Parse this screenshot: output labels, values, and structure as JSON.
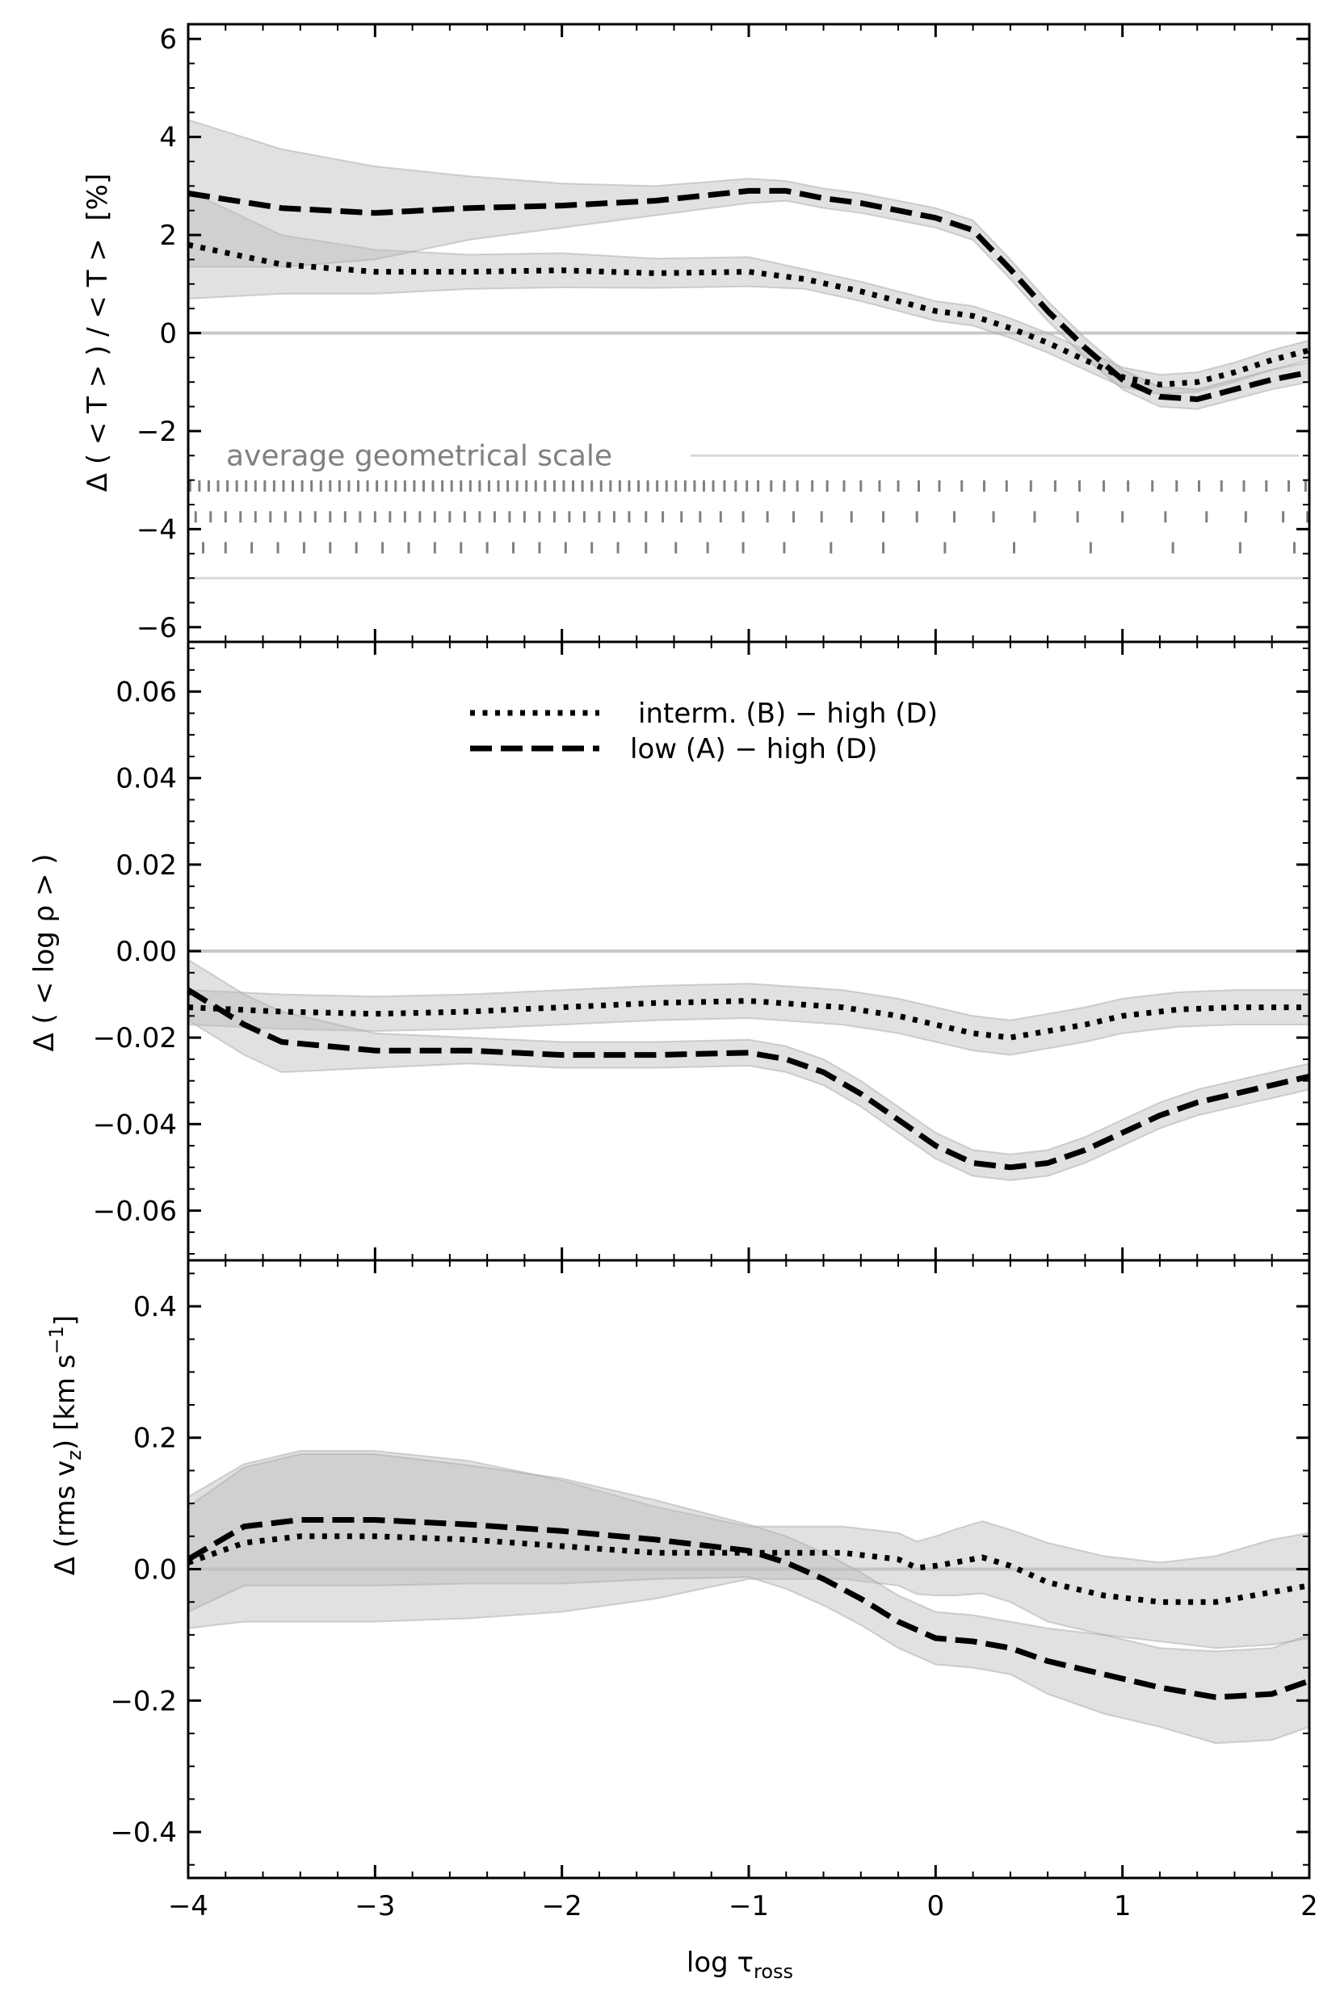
{
  "chart_data": {
    "type": "line",
    "xlabel": "log τ",
    "xlabel_sub": "ross",
    "xlim": [
      -4,
      2
    ],
    "xticks": [
      -4,
      -3,
      -2,
      -1,
      0,
      1,
      2
    ],
    "xtick_labels": [
      "−4",
      "−3",
      "−2",
      "−1",
      "0",
      "1",
      "2"
    ],
    "legend": {
      "placement": "top-center of middle panel",
      "entries": [
        {
          "label": "interm. (B) − high (D)",
          "style": "dotted"
        },
        {
          "label": "low (A) − high (D)",
          "style": "dashed"
        }
      ]
    },
    "colors": {
      "lines": "#000000",
      "band": "#bdbdbd",
      "zero_line": "#c8c8c8",
      "scale": "#808080"
    },
    "panels": [
      {
        "id": "temperature",
        "ylabel": "Δ ( < T > ) / < T >  [%]",
        "ylim": [
          -6.3,
          6.3
        ],
        "yticks": [
          -6,
          -4,
          -2,
          0,
          2,
          4,
          6
        ],
        "ytick_labels": [
          "−6",
          "−4",
          "−2",
          "0",
          "2",
          "4",
          "6"
        ],
        "series": [
          {
            "style": "dotted",
            "x": [
              -4,
              -3.5,
              -3,
              -2.5,
              -2,
              -1.5,
              -1,
              -0.7,
              -0.4,
              -0.2,
              0,
              0.2,
              0.4,
              0.6,
              0.8,
              1,
              1.2,
              1.4,
              1.6,
              1.8,
              2
            ],
            "y": [
              1.8,
              1.4,
              1.25,
              1.25,
              1.28,
              1.22,
              1.25,
              1.1,
              0.85,
              0.65,
              0.45,
              0.35,
              0.1,
              -0.2,
              -0.55,
              -0.9,
              -1.05,
              -1.0,
              -0.8,
              -0.55,
              -0.35
            ],
            "band": [
              1.1,
              0.6,
              0.45,
              0.35,
              0.35,
              0.3,
              0.3,
              0.2,
              0.2,
              0.2,
              0.2,
              0.2,
              0.2,
              0.2,
              0.2,
              0.2,
              0.2,
              0.2,
              0.2,
              0.2,
              0.2
            ]
          },
          {
            "style": "dashed",
            "x": [
              -4,
              -3.5,
              -3,
              -2.5,
              -2,
              -1.5,
              -1,
              -0.8,
              -0.6,
              -0.4,
              -0.2,
              0,
              0.2,
              0.4,
              0.6,
              0.8,
              1,
              1.2,
              1.4,
              1.6,
              1.8,
              2
            ],
            "y": [
              2.85,
              2.55,
              2.45,
              2.55,
              2.6,
              2.7,
              2.9,
              2.9,
              2.75,
              2.65,
              2.5,
              2.35,
              2.1,
              1.3,
              0.45,
              -0.3,
              -0.95,
              -1.3,
              -1.35,
              -1.15,
              -0.95,
              -0.8
            ],
            "band": [
              1.5,
              1.2,
              0.95,
              0.65,
              0.45,
              0.3,
              0.25,
              0.2,
              0.2,
              0.2,
              0.2,
              0.2,
              0.2,
              0.2,
              0.2,
              0.2,
              0.2,
              0.2,
              0.2,
              0.2,
              0.2,
              0.2
            ]
          }
        ],
        "scale_annotation": {
          "label": "average geometrical scale",
          "label_y": -2.5,
          "bottom_line_y": -5.0,
          "rows": [
            {
              "y": -3.12,
              "x_positions": [
                -3.99,
                -3.94,
                -3.89,
                -3.84,
                -3.79,
                -3.74,
                -3.69,
                -3.64,
                -3.59,
                -3.54,
                -3.49,
                -3.44,
                -3.39,
                -3.34,
                -3.29,
                -3.24,
                -3.19,
                -3.14,
                -3.09,
                -3.04,
                -2.99,
                -2.94,
                -2.89,
                -2.84,
                -2.79,
                -2.74,
                -2.69,
                -2.64,
                -2.59,
                -2.54,
                -2.49,
                -2.44,
                -2.39,
                -2.34,
                -2.29,
                -2.24,
                -2.19,
                -2.14,
                -2.09,
                -2.04,
                -1.99,
                -1.94,
                -1.89,
                -1.84,
                -1.79,
                -1.74,
                -1.69,
                -1.64,
                -1.59,
                -1.54,
                -1.49,
                -1.44,
                -1.39,
                -1.34,
                -1.29,
                -1.24,
                -1.19,
                -1.13,
                -1.07,
                -1.01,
                -0.95,
                -0.88,
                -0.81,
                -0.74,
                -0.66,
                -0.58,
                -0.49,
                -0.4,
                -0.3,
                -0.2,
                -0.09,
                0.02,
                0.14,
                0.26,
                0.38,
                0.51,
                0.64,
                0.77,
                0.9,
                1.03,
                1.16,
                1.29,
                1.41,
                1.53,
                1.65,
                1.77,
                1.89,
                1.98
              ]
            },
            {
              "y": -3.75,
              "x_positions": [
                -3.96,
                -3.88,
                -3.8,
                -3.72,
                -3.64,
                -3.56,
                -3.48,
                -3.4,
                -3.32,
                -3.24,
                -3.16,
                -3.08,
                -3.0,
                -2.92,
                -2.84,
                -2.76,
                -2.68,
                -2.6,
                -2.52,
                -2.44,
                -2.36,
                -2.28,
                -2.2,
                -2.12,
                -2.04,
                -1.96,
                -1.88,
                -1.8,
                -1.72,
                -1.64,
                -1.55,
                -1.46,
                -1.36,
                -1.26,
                -1.15,
                -1.03,
                -0.9,
                -0.76,
                -0.61,
                -0.45,
                -0.28,
                -0.1,
                0.1,
                0.31,
                0.53,
                0.76,
                1.0,
                1.23,
                1.45,
                1.66,
                1.86,
                1.99
              ]
            },
            {
              "y": -4.38,
              "x_positions": [
                -3.92,
                -3.8,
                -3.66,
                -3.52,
                -3.38,
                -3.24,
                -3.1,
                -2.96,
                -2.82,
                -2.68,
                -2.54,
                -2.4,
                -2.26,
                -2.12,
                -1.98,
                -1.84,
                -1.7,
                -1.55,
                -1.39,
                -1.22,
                -1.03,
                -0.81,
                -0.56,
                -0.28,
                0.05,
                0.42,
                0.83,
                1.27,
                1.63,
                1.92
              ]
            }
          ]
        }
      },
      {
        "id": "density",
        "ylabel": "Δ ( < log ρ > )",
        "ylim": [
          -0.0715,
          0.0715
        ],
        "yticks": [
          -0.06,
          -0.04,
          -0.02,
          0.0,
          0.02,
          0.04,
          0.06
        ],
        "ytick_labels": [
          "−0.06",
          "−0.04",
          "−0.02",
          "0.00",
          "0.02",
          "0.04",
          "0.06"
        ],
        "series": [
          {
            "style": "dotted",
            "x": [
              -4,
              -3.5,
              -3,
              -2.5,
              -2,
              -1.5,
              -1,
              -0.5,
              -0.2,
              0,
              0.2,
              0.4,
              0.6,
              0.8,
              1,
              1.3,
              1.6,
              2
            ],
            "y": [
              -0.013,
              -0.014,
              -0.0145,
              -0.014,
              -0.013,
              -0.012,
              -0.0115,
              -0.013,
              -0.015,
              -0.017,
              -0.019,
              -0.02,
              -0.0185,
              -0.017,
              -0.015,
              -0.0135,
              -0.013,
              -0.013
            ],
            "band": [
              0.004,
              0.004,
              0.004,
              0.004,
              0.004,
              0.004,
              0.004,
              0.004,
              0.004,
              0.004,
              0.004,
              0.004,
              0.004,
              0.004,
              0.004,
              0.004,
              0.004,
              0.004
            ]
          },
          {
            "style": "dashed",
            "x": [
              -4,
              -3.7,
              -3.5,
              -3,
              -2.5,
              -2,
              -1.5,
              -1,
              -0.8,
              -0.6,
              -0.4,
              -0.2,
              0,
              0.2,
              0.4,
              0.6,
              0.8,
              1,
              1.2,
              1.4,
              1.6,
              1.8,
              2
            ],
            "y": [
              -0.009,
              -0.017,
              -0.021,
              -0.023,
              -0.023,
              -0.024,
              -0.024,
              -0.0235,
              -0.025,
              -0.028,
              -0.033,
              -0.039,
              -0.045,
              -0.049,
              -0.05,
              -0.049,
              -0.046,
              -0.042,
              -0.038,
              -0.035,
              -0.033,
              -0.031,
              -0.029
            ],
            "band": [
              0.007,
              0.007,
              0.007,
              0.004,
              0.003,
              0.003,
              0.003,
              0.003,
              0.003,
              0.003,
              0.003,
              0.003,
              0.003,
              0.003,
              0.003,
              0.003,
              0.003,
              0.003,
              0.003,
              0.003,
              0.003,
              0.003,
              0.003
            ]
          }
        ]
      },
      {
        "id": "velocity",
        "ylabel": "Δ (rms v",
        "ylabel_sub": "z",
        "ylabel_rest": ") [km s",
        "ylabel_sup": "−1",
        "ylabel_end": "]",
        "ylim": [
          -0.47,
          0.47
        ],
        "yticks": [
          -0.4,
          -0.2,
          0.0,
          0.2,
          0.4
        ],
        "ytick_labels": [
          "−0.4",
          "−0.2",
          "0.0",
          "0.2",
          "0.4"
        ],
        "series": [
          {
            "style": "dotted",
            "x": [
              -4,
              -3.7,
              -3.4,
              -3,
              -2.5,
              -2,
              -1.5,
              -1,
              -0.5,
              -0.2,
              -0.1,
              0,
              0.1,
              0.25,
              0.4,
              0.6,
              0.9,
              1.2,
              1.5,
              1.8,
              2
            ],
            "y": [
              0.01,
              0.04,
              0.05,
              0.05,
              0.045,
              0.035,
              0.025,
              0.025,
              0.025,
              0.015,
              0.002,
              0.005,
              0.01,
              0.018,
              0.005,
              -0.02,
              -0.04,
              -0.05,
              -0.05,
              -0.035,
              -0.025
            ],
            "band": [
              0.1,
              0.12,
              0.13,
              0.13,
              0.12,
              0.1,
              0.07,
              0.04,
              0.04,
              0.04,
              0.04,
              0.045,
              0.05,
              0.055,
              0.055,
              0.06,
              0.06,
              0.06,
              0.07,
              0.08,
              0.08
            ]
          },
          {
            "style": "dashed",
            "x": [
              -4,
              -3.7,
              -3.4,
              -3,
              -2.5,
              -2,
              -1.5,
              -1,
              -0.8,
              -0.6,
              -0.4,
              -0.2,
              0,
              0.2,
              0.4,
              0.6,
              0.9,
              1.2,
              1.5,
              1.8,
              2
            ],
            "y": [
              0.015,
              0.065,
              0.075,
              0.075,
              0.068,
              0.058,
              0.045,
              0.028,
              0.01,
              -0.015,
              -0.045,
              -0.08,
              -0.105,
              -0.11,
              -0.12,
              -0.14,
              -0.16,
              -0.18,
              -0.195,
              -0.19,
              -0.17
            ],
            "band": [
              0.08,
              0.09,
              0.1,
              0.1,
              0.09,
              0.08,
              0.06,
              0.04,
              0.04,
              0.04,
              0.04,
              0.04,
              0.04,
              0.04,
              0.04,
              0.05,
              0.06,
              0.06,
              0.07,
              0.07,
              0.07
            ]
          }
        ]
      }
    ]
  }
}
